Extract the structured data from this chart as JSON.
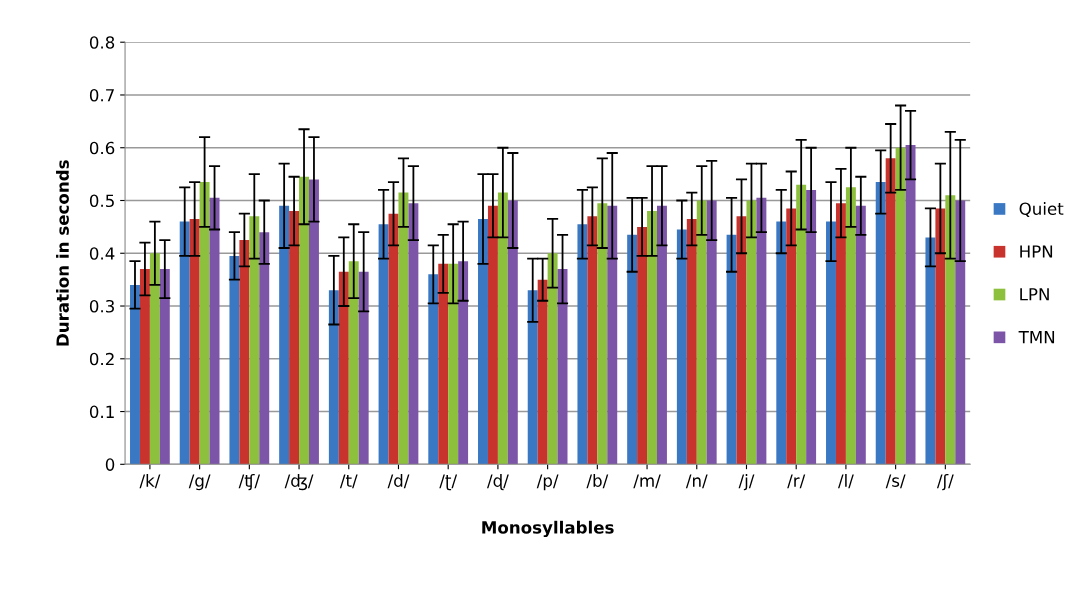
{
  "chart_data": {
    "type": "bar",
    "xlabel": "Monosyllables",
    "ylabel": "Duration in seconds",
    "categories": [
      "/k/",
      "/g/",
      "/ʧ/",
      "/ʤ/",
      "/t/",
      "/d/",
      "/ʈ/",
      "/ɖ/",
      "/p/",
      "/b/",
      "/m/",
      "/n/",
      "/j/",
      "/r/",
      "/l/",
      "/s/",
      "/ʃ/"
    ],
    "series": [
      {
        "name": "Quiet",
        "color": "#3a78c4",
        "values": [
          0.34,
          0.46,
          0.395,
          0.49,
          0.33,
          0.455,
          0.36,
          0.465,
          0.33,
          0.455,
          0.435,
          0.445,
          0.435,
          0.46,
          0.46,
          0.535,
          0.43
        ],
        "errors": [
          0.045,
          0.065,
          0.045,
          0.08,
          0.065,
          0.065,
          0.055,
          0.085,
          0.06,
          0.065,
          0.07,
          0.055,
          0.07,
          0.06,
          0.075,
          0.06,
          0.055
        ]
      },
      {
        "name": "HPN",
        "color": "#c8332e",
        "values": [
          0.37,
          0.465,
          0.425,
          0.48,
          0.365,
          0.475,
          0.38,
          0.49,
          0.35,
          0.47,
          0.45,
          0.465,
          0.47,
          0.485,
          0.495,
          0.58,
          0.485
        ],
        "errors": [
          0.05,
          0.07,
          0.05,
          0.065,
          0.065,
          0.06,
          0.055,
          0.06,
          0.04,
          0.055,
          0.055,
          0.05,
          0.07,
          0.07,
          0.065,
          0.065,
          0.085
        ]
      },
      {
        "name": "LPN",
        "color": "#8dc03c",
        "values": [
          0.4,
          0.535,
          0.47,
          0.545,
          0.385,
          0.515,
          0.38,
          0.515,
          0.4,
          0.495,
          0.48,
          0.5,
          0.5,
          0.53,
          0.525,
          0.6,
          0.51
        ],
        "errors": [
          0.06,
          0.085,
          0.08,
          0.09,
          0.07,
          0.065,
          0.075,
          0.085,
          0.065,
          0.085,
          0.085,
          0.065,
          0.07,
          0.085,
          0.075,
          0.08,
          0.12
        ]
      },
      {
        "name": "TMN",
        "color": "#7d55a8",
        "values": [
          0.37,
          0.505,
          0.44,
          0.54,
          0.365,
          0.495,
          0.385,
          0.5,
          0.37,
          0.49,
          0.49,
          0.5,
          0.505,
          0.52,
          0.49,
          0.605,
          0.5
        ],
        "errors": [
          0.055,
          0.06,
          0.06,
          0.08,
          0.075,
          0.07,
          0.075,
          0.09,
          0.065,
          0.1,
          0.075,
          0.075,
          0.065,
          0.08,
          0.055,
          0.065,
          0.115
        ]
      }
    ],
    "ylim": [
      0,
      0.8
    ],
    "yticks": [
      0,
      0.1,
      0.2,
      0.3,
      0.4,
      0.5,
      0.6,
      0.7,
      0.8
    ],
    "grid": "y",
    "legend": "right"
  }
}
